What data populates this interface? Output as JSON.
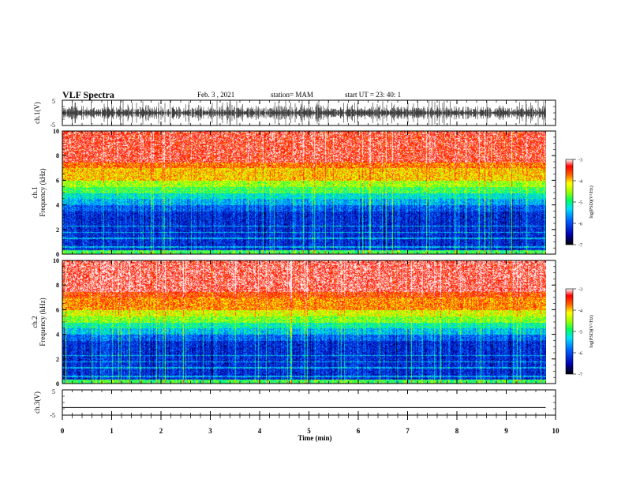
{
  "header": {
    "title": "VLF Spectra",
    "date": "Feb. 3 , 2021",
    "station": "station= MAM",
    "start": "start UT = 23: 40: 1"
  },
  "chart_data": [
    {
      "type": "line",
      "panel": "ch1-waveform",
      "ylabel": "ch.1(V)",
      "ylim": [
        -5,
        5
      ],
      "y_ticks": [
        "5",
        "-5"
      ],
      "description_values": {
        "typical_amplitude_V": [
          -3,
          3
        ]
      }
    },
    {
      "type": "heatmap",
      "panel": "ch1-spectrogram",
      "ylabel_top": "ch.1",
      "ylabel": "Frequency (kHz)",
      "ylim": [
        0,
        10
      ],
      "y_ticks": [
        "0",
        "2",
        "4",
        "6",
        "8",
        "10"
      ],
      "colorbar": {
        "label": "log(PSD)(V²/Hz)",
        "range": [
          -7,
          -3
        ],
        "ticks": [
          "-3",
          "-4",
          "-5",
          "-6",
          "-7"
        ]
      },
      "band_levels": [
        {
          "f_kHz": [
            0,
            4
          ],
          "log_psd": -6.2
        },
        {
          "f_kHz": [
            4,
            5
          ],
          "log_psd": -5.5
        },
        {
          "f_kHz": [
            5,
            6
          ],
          "log_psd": -4.8
        },
        {
          "f_kHz": [
            6,
            7.5
          ],
          "log_psd": -4.0
        },
        {
          "f_kHz": [
            7.5,
            10
          ],
          "log_psd": -3.3
        }
      ]
    },
    {
      "type": "heatmap",
      "panel": "ch2-spectrogram",
      "ylabel_top": "ch.2",
      "ylabel": "Frequency (kHz)",
      "ylim": [
        0,
        10
      ],
      "y_ticks": [
        "0",
        "2",
        "4",
        "6",
        "8",
        "10"
      ],
      "colorbar": {
        "label": "log(PSD)(V²/Hz)",
        "range": [
          -7,
          -3
        ],
        "ticks": [
          "-3",
          "-4",
          "-5",
          "-6",
          "-7"
        ]
      },
      "band_levels": [
        {
          "f_kHz": [
            0,
            4
          ],
          "log_psd": -6.2
        },
        {
          "f_kHz": [
            4,
            5
          ],
          "log_psd": -5.4
        },
        {
          "f_kHz": [
            5,
            6
          ],
          "log_psd": -4.6
        },
        {
          "f_kHz": [
            6,
            7.5
          ],
          "log_psd": -3.8
        },
        {
          "f_kHz": [
            7.5,
            10
          ],
          "log_psd": -3.2
        }
      ]
    },
    {
      "type": "line",
      "panel": "ch3-waveform",
      "ylabel": "ch.3(V)",
      "ylim": [
        -5,
        5
      ],
      "y_ticks": [
        "5",
        "-5"
      ],
      "values": [
        -2,
        -2
      ]
    }
  ],
  "x_axis": {
    "label": "Time (min)",
    "range": [
      0,
      10
    ],
    "data_end": 9.8,
    "ticks": [
      "0",
      "1",
      "2",
      "3",
      "4",
      "5",
      "6",
      "7",
      "8",
      "9",
      "10"
    ]
  },
  "colors": {
    "colormap": [
      "#000080",
      "#0000ff",
      "#0080ff",
      "#00ffff",
      "#00ff80",
      "#80ff00",
      "#ffff00",
      "#ff8000",
      "#ff0000"
    ]
  }
}
